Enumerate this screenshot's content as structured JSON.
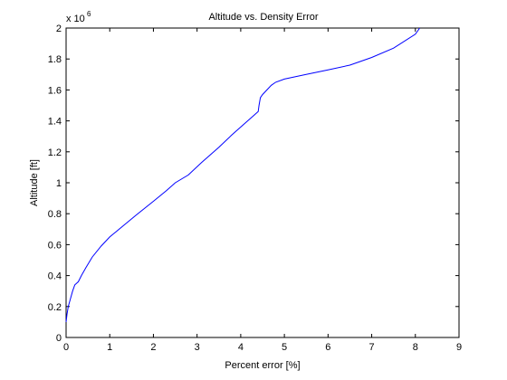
{
  "chart_data": {
    "type": "line",
    "title": "Altitude vs. Density Error",
    "xlabel": "Percent error [%]",
    "ylabel": "Altitude [ft]",
    "xlim": [
      0,
      9
    ],
    "ylim": [
      0,
      2
    ],
    "y_exponent_label": "x 10",
    "y_exponent_power": "6",
    "x_ticks": [
      "0",
      "1",
      "2",
      "3",
      "4",
      "5",
      "6",
      "7",
      "8",
      "9"
    ],
    "y_ticks": [
      "0",
      "0.2",
      "0.4",
      "0.6",
      "0.8",
      "1",
      "1.2",
      "1.4",
      "1.6",
      "1.8",
      "2"
    ],
    "grid": false,
    "line_color": "#0000ff",
    "series": [
      {
        "x": [
          0.0,
          0.02,
          0.05,
          0.1,
          0.15,
          0.2,
          0.28,
          0.35,
          0.45,
          0.6,
          0.8,
          1.0,
          1.3,
          1.6,
          2.0,
          2.3,
          2.5,
          2.8,
          3.1,
          3.5,
          3.8,
          4.0,
          4.2,
          4.4,
          4.42,
          4.45,
          4.5,
          4.6,
          4.7,
          4.8,
          5.0,
          5.5,
          6.0,
          6.5,
          7.0,
          7.5,
          8.0,
          8.1
        ],
        "y": [
          0.1,
          0.15,
          0.2,
          0.25,
          0.3,
          0.34,
          0.36,
          0.4,
          0.45,
          0.52,
          0.59,
          0.65,
          0.72,
          0.79,
          0.88,
          0.95,
          1.0,
          1.05,
          1.13,
          1.23,
          1.31,
          1.36,
          1.41,
          1.46,
          1.5,
          1.55,
          1.57,
          1.6,
          1.63,
          1.65,
          1.67,
          1.7,
          1.73,
          1.76,
          1.81,
          1.87,
          1.96,
          2.0
        ]
      }
    ]
  }
}
